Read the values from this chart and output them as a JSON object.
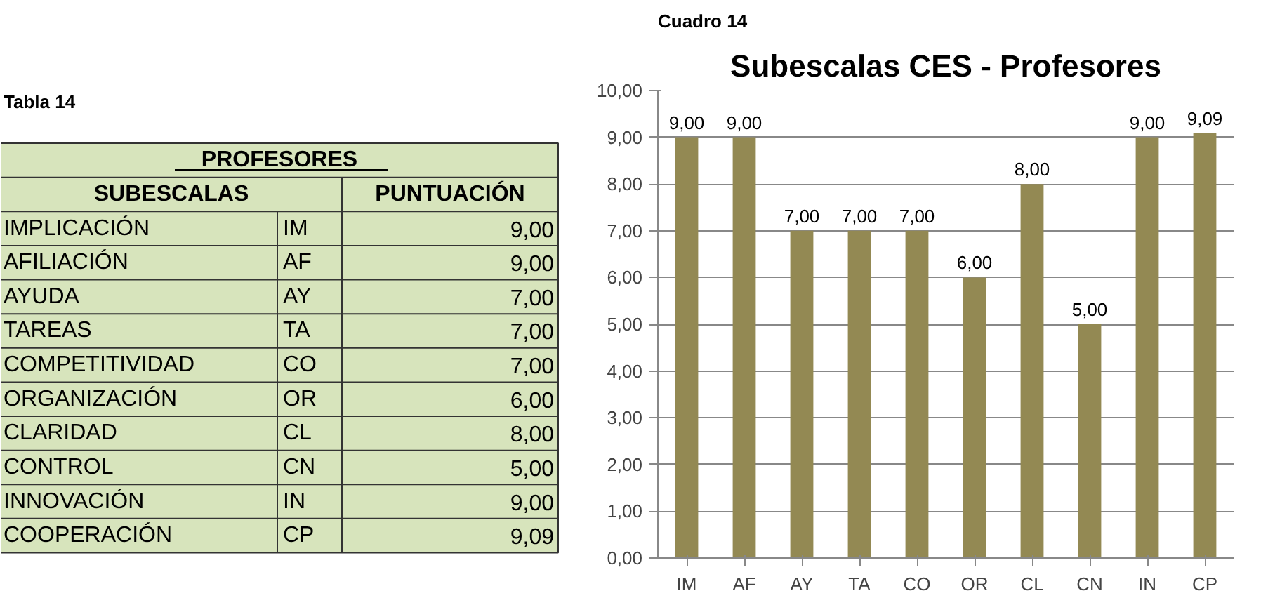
{
  "chart_data": {
    "type": "bar",
    "title": "Subescalas CES - Profesores",
    "categories": [
      "IM",
      "AF",
      "AY",
      "TA",
      "CO",
      "OR",
      "CL",
      "CN",
      "IN",
      "CP"
    ],
    "values": [
      9,
      9,
      7,
      7,
      7,
      6,
      8,
      5,
      9,
      9.09
    ],
    "value_labels": [
      "9,00",
      "9,00",
      "7,00",
      "7,00",
      "7,00",
      "6,00",
      "8,00",
      "5,00",
      "9,00",
      "9,09"
    ],
    "color": "#938953",
    "ylim": [
      0,
      10
    ],
    "yticks": [
      {
        "value": 0,
        "label": "0,00"
      },
      {
        "value": 1,
        "label": "1,00"
      },
      {
        "value": 2,
        "label": "2,00"
      },
      {
        "value": 3,
        "label": "3,00"
      },
      {
        "value": 4,
        "label": "4,00"
      },
      {
        "value": 5,
        "label": "5,00"
      },
      {
        "value": 6,
        "label": "6,00"
      },
      {
        "value": 7,
        "label": "7,00"
      },
      {
        "value": 8,
        "label": "8,00"
      },
      {
        "value": 9,
        "label": "9,00"
      },
      {
        "value": 10,
        "label": "10,00"
      }
    ],
    "grid": "y",
    "annotations": [
      "Tabla 14",
      "Cuadro 14",
      "PROFESORES",
      "SUBESCALAS",
      "PUNTUACIÓN",
      "IMPLICACIÓN",
      "AFILIACIÓN",
      "AYUDA",
      "TAREAS",
      "COMPETITIVIDAD",
      "ORGANIZACIÓN",
      "CLARIDAD",
      "CONTROL",
      "INNOVACIÓN",
      "COOPERACIÓN"
    ]
  }
}
